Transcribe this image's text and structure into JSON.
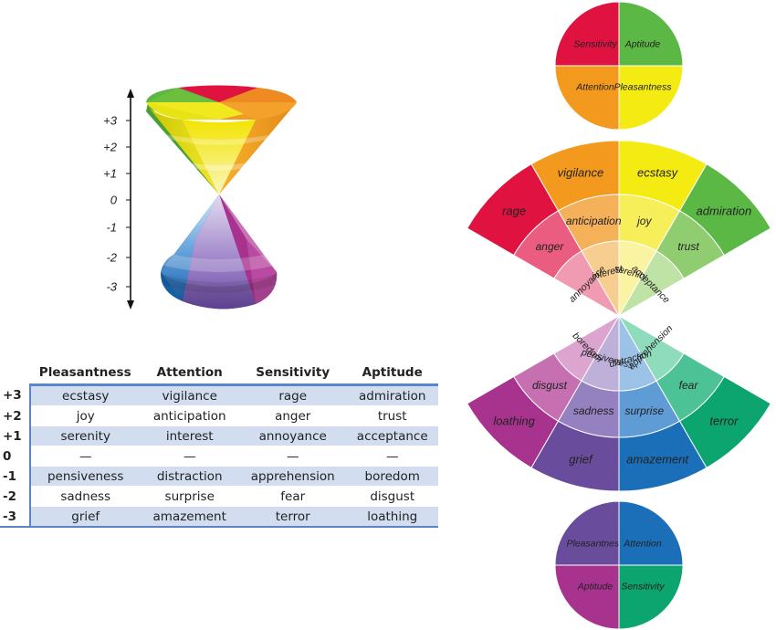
{
  "cone": {
    "ticks": [
      "+3",
      "+2",
      "+1",
      "0",
      "-1",
      "-2",
      "-3"
    ],
    "colors": {
      "red": "#e0123f",
      "orange": "#f39a1e",
      "yellow": "#f4eb12",
      "green": "#5cb845",
      "purple": "#6a4c9c",
      "blue": "#1a6fb8",
      "teal": "#0ca46f",
      "magenta": "#a7338f"
    }
  },
  "table": {
    "headers": [
      "Pleasantness",
      "Attention",
      "Sensitivity",
      "Aptitude"
    ],
    "rows": [
      {
        "level": "+3",
        "cells": [
          "ecstasy",
          "vigilance",
          "rage",
          "admiration"
        ]
      },
      {
        "level": "+2",
        "cells": [
          "joy",
          "anticipation",
          "anger",
          "trust"
        ]
      },
      {
        "level": "+1",
        "cells": [
          "serenity",
          "interest",
          "annoyance",
          "acceptance"
        ]
      },
      {
        "level": "0",
        "cells": [
          "—",
          "—",
          "—",
          "—"
        ]
      },
      {
        "level": "-1",
        "cells": [
          "pensiveness",
          "distraction",
          "apprehension",
          "boredom"
        ]
      },
      {
        "level": "-2",
        "cells": [
          "sadness",
          "surprise",
          "fear",
          "disgust"
        ]
      },
      {
        "level": "-3",
        "cells": [
          "grief",
          "amazement",
          "terror",
          "loathing"
        ]
      }
    ]
  },
  "wheel": {
    "top_circle": {
      "top_left": "Sensitivity",
      "top_right": "Aptitude",
      "bottom_left": "Attention",
      "bottom_right": "Pleasantness"
    },
    "upper": {
      "outer": [
        "rage",
        "vigilance",
        "ecstasy",
        "admiration"
      ],
      "middle": [
        "anger",
        "anticipation",
        "joy",
        "trust"
      ],
      "inner": [
        "annoyance",
        "interest",
        "serenity",
        "acceptance"
      ]
    },
    "lower": {
      "inner": [
        "boredom",
        "pensiveness",
        "distraction",
        "apprehension"
      ],
      "middle": [
        "disgust",
        "sadness",
        "surprise",
        "fear"
      ],
      "outer": [
        "loathing",
        "grief",
        "amazement",
        "terror"
      ]
    },
    "bottom_circle": {
      "top_left": "Pleasantness",
      "top_right": "Attention",
      "bottom_left": "Aptitude",
      "bottom_right": "Sensitivity"
    }
  }
}
